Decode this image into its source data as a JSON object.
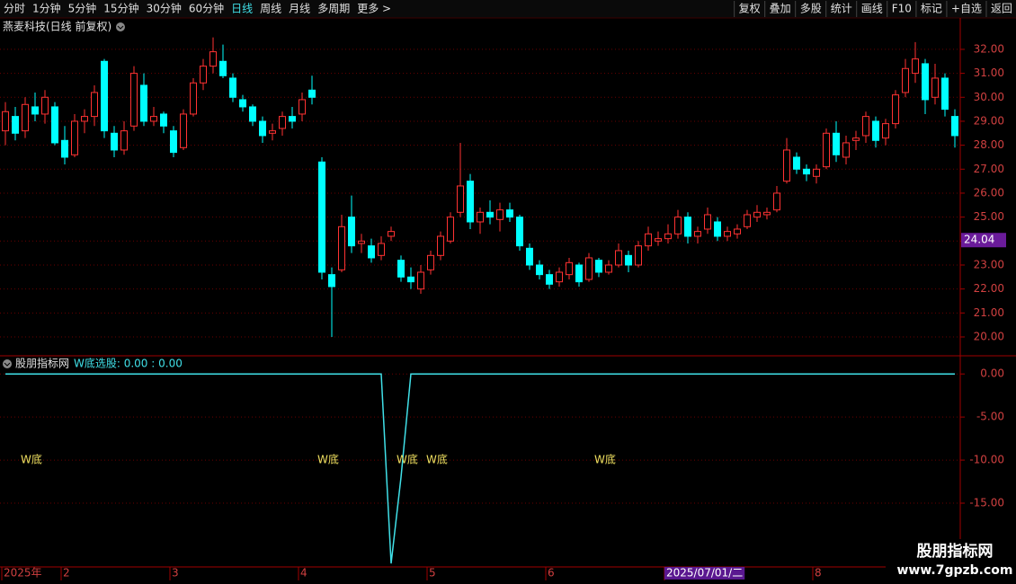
{
  "toolbar": {
    "left": [
      "分时",
      "1分钟",
      "5分钟",
      "15分钟",
      "30分钟",
      "60分钟",
      "日线",
      "周线",
      "月线",
      "多周期",
      "更多 >"
    ],
    "active": "日线",
    "right": [
      "复权",
      "叠加",
      "多股",
      "统计",
      "画线",
      "F10",
      "标记",
      "+自选",
      "返回"
    ]
  },
  "chart_data": [
    {
      "type": "candlestick",
      "title": "燕麦科技(日线 前复权)",
      "open": [
        28.6,
        29.2,
        28.6,
        29.6,
        29.3,
        29.6,
        28.2,
        27.6,
        29.0,
        29.2,
        31.5,
        28.5,
        27.8,
        28.8,
        30.5,
        29.0,
        29.3,
        28.6,
        27.9,
        29.3,
        30.6,
        31.3,
        31.5,
        30.8,
        29.9,
        29.6,
        29.0,
        28.5,
        28.7,
        29.2,
        29.3,
        30.3,
        27.3,
        22.6,
        22.8,
        25.0,
        23.9,
        23.8,
        23.4,
        24.2,
        23.2,
        22.5,
        22.0,
        22.8,
        23.4,
        24.0,
        25.2,
        26.5,
        24.8,
        25.2,
        24.9,
        25.3,
        25.0,
        23.7,
        23.0,
        22.6,
        22.3,
        22.6,
        23.0,
        22.4,
        23.2,
        22.7,
        23.0,
        23.4,
        23.0,
        23.8,
        24.0,
        24.1,
        24.3,
        25.0,
        24.2,
        24.5,
        24.8,
        24.2,
        24.3,
        24.6,
        25.0,
        25.1,
        25.3,
        26.5,
        27.5,
        27.0,
        26.7,
        27.1,
        28.5,
        27.5,
        28.2,
        28.4,
        29.0,
        28.3,
        28.9,
        30.2,
        31.0,
        31.4,
        30.0,
        30.8,
        29.2
      ],
      "high": [
        29.8,
        29.6,
        30.0,
        30.2,
        30.3,
        29.8,
        28.8,
        29.3,
        29.5,
        30.5,
        31.6,
        28.8,
        29.0,
        31.3,
        31.0,
        29.6,
        29.4,
        28.8,
        29.5,
        30.8,
        31.6,
        32.5,
        32.2,
        31.0,
        30.1,
        29.7,
        29.2,
        28.9,
        29.4,
        29.6,
        30.2,
        30.9,
        27.5,
        22.9,
        25.1,
        25.9,
        24.3,
        24.1,
        24.2,
        24.6,
        23.4,
        22.9,
        23.0,
        23.6,
        24.4,
        25.2,
        28.1,
        26.8,
        25.4,
        25.7,
        25.6,
        25.6,
        25.1,
        23.9,
        23.2,
        22.8,
        22.9,
        23.3,
        23.1,
        23.5,
        23.3,
        23.2,
        23.9,
        23.6,
        24.0,
        24.6,
        24.4,
        24.7,
        25.3,
        25.2,
        24.6,
        25.4,
        25.0,
        24.6,
        24.7,
        25.3,
        25.5,
        25.4,
        26.3,
        28.3,
        27.7,
        27.2,
        27.2,
        28.7,
        29.0,
        28.4,
        28.6,
        29.4,
        29.2,
        29.1,
        30.3,
        31.6,
        32.3,
        31.6,
        31.4,
        31.0,
        29.5
      ],
      "low": [
        28.0,
        28.2,
        28.3,
        29.0,
        28.9,
        28.0,
        27.2,
        27.5,
        28.5,
        28.8,
        28.3,
        27.5,
        27.6,
        28.6,
        28.8,
        28.8,
        28.5,
        27.5,
        27.8,
        29.2,
        30.3,
        31.0,
        30.8,
        29.8,
        29.4,
        28.8,
        28.1,
        28.2,
        28.4,
        28.7,
        29.0,
        29.7,
        22.4,
        20.0,
        22.7,
        23.5,
        23.5,
        23.1,
        23.2,
        24.0,
        22.3,
        22.0,
        21.8,
        22.6,
        23.2,
        23.9,
        25.0,
        24.5,
        24.3,
        24.7,
        24.4,
        24.8,
        23.6,
        22.8,
        22.4,
        22.0,
        22.1,
        22.4,
        22.1,
        22.3,
        22.5,
        22.6,
        22.9,
        22.7,
        22.9,
        23.6,
        23.8,
        23.9,
        24.1,
        23.9,
        23.9,
        24.3,
        24.0,
        24.0,
        24.1,
        24.5,
        24.8,
        24.9,
        25.2,
        26.4,
        26.8,
        26.5,
        26.4,
        27.0,
        27.3,
        27.2,
        27.8,
        28.1,
        27.9,
        28.0,
        28.7,
        30.0,
        30.6,
        29.3,
        29.7,
        29.2,
        27.9
      ],
      "close": [
        29.4,
        28.5,
        29.7,
        29.3,
        30.0,
        28.1,
        27.5,
        29.0,
        29.2,
        30.2,
        28.6,
        27.8,
        28.6,
        31.0,
        29.0,
        29.2,
        28.8,
        27.7,
        29.3,
        30.6,
        31.3,
        31.9,
        30.9,
        30.0,
        29.6,
        29.0,
        28.4,
        28.6,
        29.2,
        29.0,
        29.9,
        30.0,
        22.7,
        22.1,
        24.6,
        23.8,
        24.0,
        23.3,
        23.9,
        24.4,
        22.5,
        22.3,
        22.7,
        23.4,
        24.2,
        25.0,
        26.3,
        24.8,
        25.2,
        25.0,
        25.3,
        25.0,
        23.8,
        23.0,
        22.6,
        22.2,
        22.7,
        23.1,
        22.3,
        23.3,
        22.7,
        23.0,
        23.6,
        23.0,
        23.8,
        24.3,
        24.1,
        24.3,
        25.0,
        24.2,
        24.4,
        25.1,
        24.2,
        24.4,
        24.5,
        25.1,
        25.2,
        25.2,
        26.0,
        27.8,
        27.0,
        26.8,
        27.0,
        28.5,
        27.6,
        28.1,
        28.3,
        29.2,
        28.2,
        28.9,
        30.1,
        31.2,
        31.6,
        29.9,
        30.8,
        29.5,
        28.4
      ],
      "up_color": "#ff3232",
      "down_color": "#00ffff",
      "ylim": [
        19.25,
        32.56
      ],
      "yticks": [
        {
          "value": 20,
          "label": "20.00"
        },
        {
          "value": 21,
          "label": "21.00"
        },
        {
          "value": 22,
          "label": "22.00"
        },
        {
          "value": 23,
          "label": "23.00"
        },
        {
          "value": 24,
          "label": "24.00"
        },
        {
          "value": 25,
          "label": "25.00"
        },
        {
          "value": 26,
          "label": "26.00"
        },
        {
          "value": 27,
          "label": "27.00"
        },
        {
          "value": 28,
          "label": "28.00"
        },
        {
          "value": 29,
          "label": "29.00"
        },
        {
          "value": 30,
          "label": "30.00"
        },
        {
          "value": 31,
          "label": "31.00"
        },
        {
          "value": 32,
          "label": "32.00"
        }
      ],
      "price_marker": {
        "value": 24.04,
        "label": "24.04"
      },
      "xlabels": [
        {
          "index": 0,
          "label": "2025年"
        },
        {
          "index": 6,
          "label": "2"
        },
        {
          "index": 17,
          "label": "3"
        },
        {
          "index": 30,
          "label": "4"
        },
        {
          "index": 43,
          "label": "5"
        },
        {
          "index": 55,
          "label": "6"
        },
        {
          "index": 67,
          "label": "2025/07/01/二",
          "highlight": true
        },
        {
          "index": 82,
          "label": "8"
        }
      ],
      "grid": true
    },
    {
      "type": "line",
      "title": "股朋指标网",
      "subtitle": "W底选股: 0.00 : 0.00",
      "color": "#40e0e8",
      "values": [
        0,
        0,
        0,
        0,
        0,
        0,
        0,
        0,
        0,
        0,
        0,
        0,
        0,
        0,
        0,
        0,
        0,
        0,
        0,
        0,
        0,
        0,
        0,
        0,
        0,
        0,
        0,
        0,
        0,
        0,
        0,
        0,
        0,
        0,
        0,
        0,
        0,
        0,
        0,
        -22,
        -12,
        0,
        0,
        0,
        0,
        0,
        0,
        0,
        0,
        0,
        0,
        0,
        0,
        0,
        0,
        0,
        0,
        0,
        0,
        0,
        0,
        0,
        0,
        0,
        0,
        0,
        0,
        0,
        0,
        0,
        0,
        0,
        0,
        0,
        0,
        0,
        0,
        0,
        0,
        0,
        0,
        0,
        0,
        0,
        0,
        0,
        0,
        0,
        0,
        0,
        0,
        0,
        0,
        0,
        0,
        0,
        0
      ],
      "ylim": [
        -22.3,
        1.9
      ],
      "yticks": [
        {
          "value": 0,
          "label": "0.00"
        },
        {
          "value": -5,
          "label": "-5.00"
        },
        {
          "value": -10,
          "label": "-10.00"
        },
        {
          "value": -15,
          "label": "-15.00"
        }
      ],
      "annotations": [
        {
          "index": 2,
          "value": -10,
          "text": "W底"
        },
        {
          "index": 32,
          "value": -10,
          "text": "W底"
        },
        {
          "index": 40,
          "value": -10,
          "text": "W底"
        },
        {
          "index": 43,
          "value": -10,
          "text": "W底"
        },
        {
          "index": 60,
          "value": -10,
          "text": "W底"
        }
      ],
      "grid": true
    }
  ],
  "watermark": {
    "title": "股朋指标网",
    "url": "www.7gpzb.com"
  }
}
